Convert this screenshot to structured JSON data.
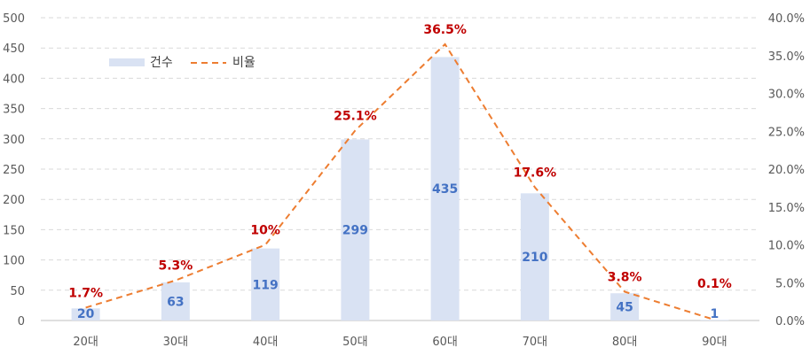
{
  "chart_data": {
    "type": "bar",
    "categories": [
      "20대",
      "30대",
      "40대",
      "50대",
      "60대",
      "70대",
      "80대",
      "90대"
    ],
    "series": [
      {
        "name": "건수",
        "type": "bar",
        "axis": "left",
        "values": [
          20,
          63,
          119,
          299,
          435,
          210,
          45,
          1
        ],
        "labels": [
          "20",
          "63",
          "119",
          "299",
          "435",
          "210",
          "45",
          "1"
        ]
      },
      {
        "name": "비율",
        "type": "line",
        "axis": "right",
        "values": [
          1.7,
          5.3,
          10,
          25.1,
          36.5,
          17.6,
          3.8,
          0.1
        ],
        "labels": [
          "1.7%",
          "5.3%",
          "10%",
          "25.1%",
          "36.5%",
          "17.6%",
          "3.8%",
          "0.1%"
        ]
      }
    ],
    "ylim_left": [
      0,
      500
    ],
    "yticks_left": [
      "0",
      "50",
      "100",
      "150",
      "200",
      "250",
      "300",
      "350",
      "400",
      "450",
      "500"
    ],
    "ylim_right": [
      0,
      40
    ],
    "yticks_right": [
      "0.0%",
      "5.0%",
      "10.0%",
      "15.0%",
      "20.0%",
      "25.0%",
      "30.0%",
      "35.0%",
      "40.0%"
    ],
    "grid": true,
    "legend_position": "top-left",
    "colors": {
      "bar": "#D9E2F3",
      "bar_label": "#4472C4",
      "line": "#ED7D31",
      "line_label": "#C00000",
      "grid": "#D9D9D9",
      "axis_text": "#595959"
    }
  }
}
